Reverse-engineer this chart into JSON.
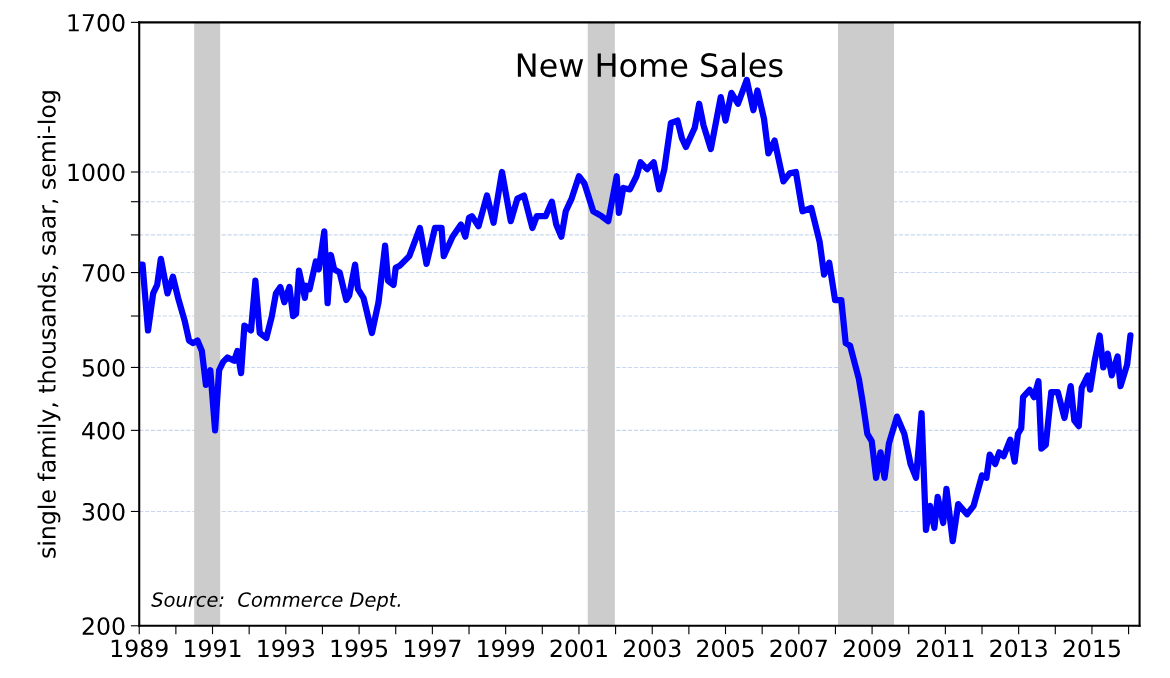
{
  "chart_data": {
    "type": "line",
    "title": "New Home Sales",
    "ylabel": "single family, thousands, saar, semi-log",
    "annotations": [
      "Source:  Commerce Dept."
    ],
    "log": true,
    "grid": "y",
    "line_style": "solid",
    "marker": "none",
    "ylim": [
      200,
      1700
    ],
    "yticks": [
      200,
      300,
      400,
      500,
      {
        "value": 600,
        "label": null
      },
      700,
      {
        "value": 800,
        "label": null
      },
      {
        "value": 900,
        "label": null
      },
      1000,
      1700
    ],
    "xlim": [
      1989,
      2016.3
    ],
    "xticks": [
      1989,
      {
        "value": 1990,
        "label": null
      },
      1991,
      {
        "value": 1992,
        "label": null
      },
      1993,
      {
        "value": 1994,
        "label": null
      },
      1995,
      {
        "value": 1996,
        "label": null
      },
      1997,
      {
        "value": 1998,
        "label": null
      },
      1999,
      {
        "value": 2000,
        "label": null
      },
      2001,
      {
        "value": 2002,
        "label": null
      },
      2003,
      {
        "value": 2004,
        "label": null
      },
      2005,
      {
        "value": 2006,
        "label": null
      },
      2007,
      {
        "value": 2008,
        "label": null
      },
      2009,
      {
        "value": 2010,
        "label": null
      },
      2011,
      {
        "value": 2012,
        "label": null
      },
      2013,
      {
        "value": 2014,
        "label": null
      },
      2015,
      {
        "value": 2016,
        "label": null
      }
    ],
    "bands": [
      {
        "axis": "x",
        "from": 1990.5,
        "to": 1991.21,
        "color": "#cccccc"
      },
      {
        "axis": "x",
        "from": 2001.24,
        "to": 2001.98,
        "color": "#cccccc"
      },
      {
        "axis": "x",
        "from": 2008.07,
        "to": 2009.6,
        "color": "#cccccc"
      }
    ],
    "series": [
      {
        "color": "#0000ff",
        "x": [
          1989.0,
          1989.09,
          1989.24,
          1989.38,
          1989.49,
          1989.59,
          1989.77,
          1989.92,
          1990.06,
          1990.24,
          1990.36,
          1990.47,
          1990.59,
          1990.71,
          1990.82,
          1990.94,
          1991.07,
          1991.18,
          1991.29,
          1991.41,
          1991.59,
          1991.68,
          1991.78,
          1991.87,
          1992.05,
          1992.17,
          1992.29,
          1992.47,
          1992.62,
          1992.73,
          1992.85,
          1992.96,
          1993.1,
          1993.2,
          1993.28,
          1993.36,
          1993.52,
          1993.56,
          1993.65,
          1993.82,
          1993.9,
          1994.05,
          1994.14,
          1994.23,
          1994.32,
          1994.47,
          1994.65,
          1994.73,
          1994.89,
          1994.97,
          1995.12,
          1995.35,
          1995.53,
          1995.71,
          1995.79,
          1995.94,
          1996.0,
          1996.12,
          1996.37,
          1996.66,
          1996.84,
          1997.07,
          1997.25,
          1997.31,
          1997.55,
          1997.78,
          1997.9,
          1998.0,
          1998.08,
          1998.26,
          1998.49,
          1998.67,
          1998.9,
          1999.14,
          1999.32,
          1999.5,
          1999.73,
          1999.85,
          2000.09,
          2000.26,
          2000.38,
          2000.52,
          2000.64,
          2000.8,
          2001.0,
          2001.15,
          2001.39,
          2001.62,
          2001.8,
          2002.03,
          2002.09,
          2002.21,
          2002.39,
          2002.57,
          2002.68,
          2002.86,
          2003.04,
          2003.19,
          2003.33,
          2003.51,
          2003.69,
          2003.81,
          2003.92,
          2004.16,
          2004.28,
          2004.4,
          2004.6,
          2004.87,
          2005.0,
          2005.16,
          2005.34,
          2005.58,
          2005.76,
          2005.87,
          2006.05,
          2006.17,
          2006.34,
          2006.58,
          2006.75,
          2006.92,
          2007.1,
          2007.34,
          2007.57,
          2007.69,
          2007.83,
          2007.99,
          2008.16,
          2008.28,
          2008.4,
          2008.64,
          2008.75,
          2008.87,
          2008.99,
          2009.11,
          2009.23,
          2009.34,
          2009.46,
          2009.68,
          2009.88,
          2010.05,
          2010.2,
          2010.35,
          2010.47,
          2010.58,
          2010.7,
          2010.79,
          2010.94,
          2011.03,
          2011.2,
          2011.35,
          2011.59,
          2011.77,
          2012.0,
          2012.12,
          2012.21,
          2012.36,
          2012.47,
          2012.59,
          2012.77,
          2012.89,
          2012.98,
          2013.07,
          2013.12,
          2013.3,
          2013.42,
          2013.54,
          2013.62,
          2013.74,
          2013.89,
          2014.07,
          2014.25,
          2014.42,
          2014.52,
          2014.64,
          2014.72,
          2014.89,
          2014.95,
          2015.07,
          2015.21,
          2015.31,
          2015.43,
          2015.54,
          2015.7,
          2015.78,
          2015.96,
          2016.05
        ],
        "values": [
          720,
          720,
          570,
          650,
          670,
          735,
          650,
          690,
          640,
          590,
          550,
          545,
          550,
          530,
          470,
          495,
          400,
          495,
          510,
          518,
          512,
          530,
          490,
          580,
          570,
          680,
          565,
          555,
          600,
          650,
          665,
          630,
          665,
          600,
          605,
          705,
          640,
          668,
          660,
          728,
          708,
          810,
          628,
          745,
          708,
          700,
          635,
          645,
          720,
          660,
          640,
          565,
          630,
          770,
          680,
          670,
          712,
          718,
          742,
          820,
          722,
          820,
          820,
          742,
          795,
          830,
          795,
          850,
          855,
          825,
          920,
          835,
          1000,
          840,
          910,
          920,
          820,
          855,
          855,
          900,
          830,
          795,
          870,
          910,
          985,
          960,
          870,
          855,
          840,
          985,
          865,
          945,
          940,
          985,
          1035,
          1010,
          1035,
          940,
          1010,
          1190,
          1200,
          1127,
          1093,
          1170,
          1274,
          1180,
          1085,
          1304,
          1200,
          1324,
          1274,
          1386,
          1245,
          1335,
          1208,
          1068,
          1118,
          967,
          995,
          1000,
          870,
          880,
          780,
          695,
          725,
          635,
          635,
          545,
          540,
          480,
          440,
          395,
          385,
          338,
          370,
          338,
          382,
          420,
          395,
          355,
          338,
          425,
          281,
          306,
          283,
          316,
          288,
          325,
          270,
          308,
          297,
          306,
          341,
          338,
          367,
          355,
          370,
          365,
          387,
          358,
          395,
          403,
          450,
          462,
          450,
          476,
          375,
          380,
          458,
          458,
          418,
          468,
          414,
          406,
          465,
          486,
          462,
          510,
          560,
          500,
          525,
          486,
          520,
          468,
          505,
          560
        ]
      }
    ]
  }
}
